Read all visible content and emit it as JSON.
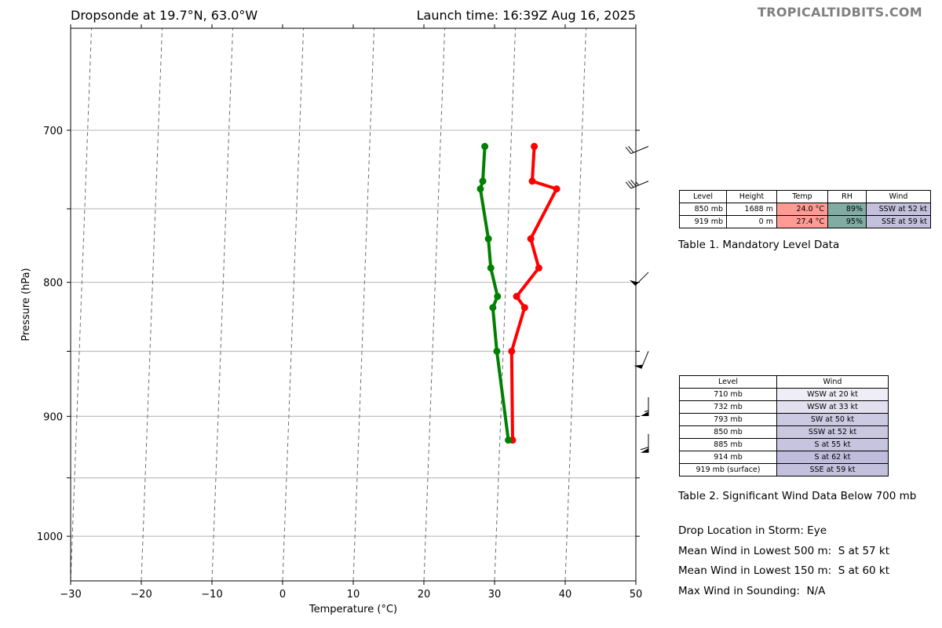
{
  "header": {
    "title_left": "Dropsonde at 19.7°N, 63.0°W",
    "title_right": "Launch time: 16:39Z Aug 16, 2025",
    "brand": "TROPICALTIDBITS.COM"
  },
  "chart_data": {
    "type": "line",
    "title": "",
    "xlabel": "Temperature (°C)",
    "ylabel": "Pressure (hPa)",
    "xlim": [
      -30,
      50
    ],
    "ylim": [
      1040,
      640
    ],
    "yscale": "log",
    "x_ticks": [
      -30,
      -20,
      -10,
      0,
      10,
      20,
      30,
      40,
      50
    ],
    "x_tick_labels": [
      "−30",
      "−20",
      "−10",
      "0",
      "10",
      "20",
      "30",
      "40",
      "50"
    ],
    "y_ticks": [
      700,
      800,
      900,
      1000
    ],
    "y_tick_labels": [
      "700",
      "800",
      "900",
      "1000"
    ],
    "y_gridlines": [
      700,
      750,
      800,
      850,
      900,
      950,
      1000
    ],
    "skew_degrees_per_decade": 14,
    "isotherm_step": 10,
    "series": [
      {
        "color": "#ff0000",
        "x": [
          33.3,
          33.2,
          36.7,
          33.3,
          34.6,
          31.6,
          32.8,
          31.2,
          31.8
        ],
        "y": [
          710,
          732,
          737,
          770,
          790,
          810,
          818,
          850,
          919
        ]
      },
      {
        "color": "#008000",
        "x": [
          26.3,
          26.2,
          25.9,
          27.3,
          27.8,
          28.9,
          28.3,
          29.1,
          31.2
        ],
        "y": [
          710,
          732,
          737,
          770,
          790,
          810,
          818,
          850,
          919
        ]
      }
    ],
    "wind_barbs": [
      {
        "pressure": 710,
        "direction": "WSW",
        "speed_kt": 20
      },
      {
        "pressure": 732,
        "direction": "WSW",
        "speed_kt": 33
      },
      {
        "pressure": 793,
        "direction": "SW",
        "speed_kt": 50
      },
      {
        "pressure": 850,
        "direction": "SSW",
        "speed_kt": 52
      },
      {
        "pressure": 885,
        "direction": "S",
        "speed_kt": 55
      },
      {
        "pressure": 914,
        "direction": "S",
        "speed_kt": 62
      }
    ]
  },
  "table1": {
    "headers": [
      "Level",
      "Height",
      "Temp",
      "RH",
      "Wind"
    ],
    "rows": [
      {
        "level": "850 mb",
        "height": "1688 m",
        "temp": "24.0 °C",
        "rh": "89%",
        "wind": "SSW at 52 kt"
      },
      {
        "level": "919 mb",
        "height": "0 m",
        "temp": "27.4 °C",
        "rh": "95%",
        "wind": "SSE at 59 kt"
      }
    ],
    "caption": "Table 1. Mandatory Level Data",
    "temp_color": "#ff9a94",
    "rh_color": "#81aca4",
    "wind_color": "#c3c0dc"
  },
  "table2": {
    "headers": [
      "Level",
      "Wind"
    ],
    "rows": [
      {
        "level": "710 mb",
        "wind": "WSW at 20 kt",
        "color": "#efeef6"
      },
      {
        "level": "732 mb",
        "wind": "WSW at 33 kt",
        "color": "#e2e0ef"
      },
      {
        "level": "793 mb",
        "wind": "SW at 50 kt",
        "color": "#ccc9e2"
      },
      {
        "level": "850 mb",
        "wind": "SSW at 52 kt",
        "color": "#cac7e1"
      },
      {
        "level": "885 mb",
        "wind": "S at 55 kt",
        "color": "#c7c4df"
      },
      {
        "level": "914 mb",
        "wind": "S at 62 kt",
        "color": "#c0bcdc"
      },
      {
        "level": "919 mb (surface)",
        "wind": "SSE at 59 kt",
        "color": "#c3c0dd"
      }
    ],
    "caption": "Table 2. Significant Wind Data Below 700 mb"
  },
  "summary": [
    "Drop Location in Storm: Eye",
    "Mean Wind in Lowest 500 m:  S at 57 kt",
    "Mean Wind in Lowest 150 m:  S at 60 kt",
    "Max Wind in Sounding:  N/A"
  ]
}
